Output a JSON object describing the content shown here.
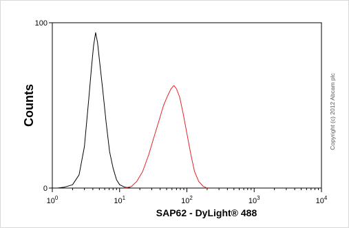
{
  "chart_data": {
    "type": "line",
    "xlabel": "SAP62 - DyLight® 488",
    "ylabel": "Counts",
    "x_scale": "log",
    "xlim": [
      1,
      10000
    ],
    "ylim": [
      0,
      100
    ],
    "x_ticks": [
      {
        "value": 1,
        "base": "10",
        "exp": "0"
      },
      {
        "value": 10,
        "base": "10",
        "exp": "1"
      },
      {
        "value": 100,
        "base": "10",
        "exp": "2"
      },
      {
        "value": 1000,
        "base": "10",
        "exp": "3"
      },
      {
        "value": 10000,
        "base": "10",
        "exp": "4"
      }
    ],
    "y_ticks": [
      {
        "value": 0,
        "label": "0"
      },
      {
        "value": 100,
        "label": "100"
      }
    ],
    "grid": false,
    "series": [
      {
        "color": "#000000",
        "points": [
          [
            1.2,
            0
          ],
          [
            1.5,
            0.5
          ],
          [
            2.0,
            2
          ],
          [
            2.5,
            8
          ],
          [
            3.0,
            25
          ],
          [
            3.5,
            55
          ],
          [
            3.8,
            72
          ],
          [
            4.1,
            86
          ],
          [
            4.4,
            94
          ],
          [
            4.7,
            88
          ],
          [
            5.0,
            78
          ],
          [
            5.6,
            60
          ],
          [
            6.3,
            40
          ],
          [
            7.1,
            22
          ],
          [
            8.0,
            12
          ],
          [
            9.0,
            5
          ],
          [
            10.0,
            2
          ],
          [
            12.0,
            0.5
          ],
          [
            15.0,
            0
          ]
        ]
      },
      {
        "color": "#e8202a",
        "points": [
          [
            12,
            0
          ],
          [
            15,
            1
          ],
          [
            18,
            4
          ],
          [
            22,
            10
          ],
          [
            27,
            20
          ],
          [
            32,
            30
          ],
          [
            38,
            40
          ],
          [
            45,
            50
          ],
          [
            52,
            56
          ],
          [
            58,
            60
          ],
          [
            64,
            62
          ],
          [
            70,
            60
          ],
          [
            78,
            55
          ],
          [
            88,
            45
          ],
          [
            100,
            33
          ],
          [
            115,
            20
          ],
          [
            130,
            10
          ],
          [
            150,
            4
          ],
          [
            175,
            1
          ],
          [
            200,
            0
          ]
        ]
      }
    ]
  },
  "copyright": "Copyright (c) 2012 Abcam plc"
}
